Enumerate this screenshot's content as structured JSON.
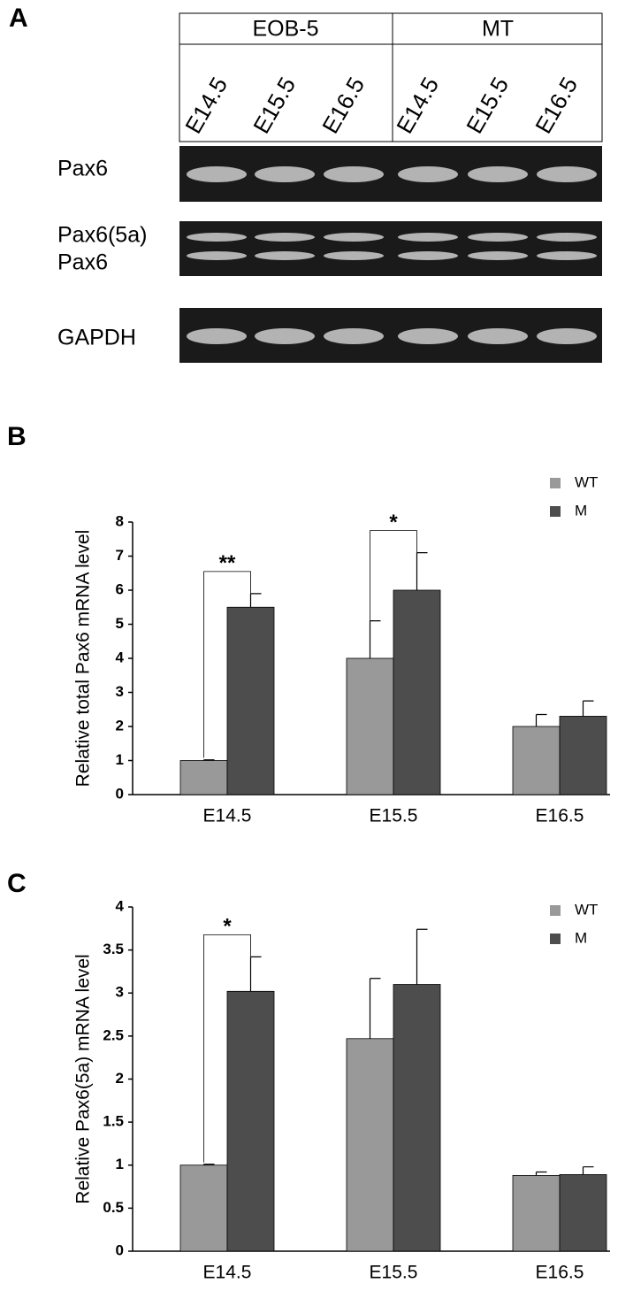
{
  "panel_labels": [
    "A",
    "B",
    "C"
  ],
  "gel": {
    "groups": [
      "EOB-5",
      "MT"
    ],
    "lanes": [
      "E14.5",
      "E15.5",
      "E16.5",
      "E14.5",
      "E15.5",
      "E16.5"
    ],
    "rows": [
      "Pax6",
      "Pax6(5a)",
      "Pax6",
      "GAPDH"
    ]
  },
  "chart_data": [
    {
      "type": "bar",
      "ylabel": "Relative total Pax6 mRNA level",
      "categories": [
        "E14.5",
        "E15.5",
        "E16.5"
      ],
      "series": [
        {
          "name": "WT",
          "color": "#999999",
          "values": [
            1.0,
            4.0,
            2.0
          ],
          "errors": [
            0.02,
            1.1,
            0.35
          ]
        },
        {
          "name": "M",
          "color": "#4d4d4d",
          "values": [
            5.5,
            6.0,
            2.3
          ],
          "errors": [
            0.4,
            1.1,
            0.45
          ]
        }
      ],
      "ylim": [
        0,
        8
      ],
      "yticks": [
        0,
        1,
        2,
        3,
        4,
        5,
        6,
        7,
        8
      ],
      "significance": [
        {
          "category": "E14.5",
          "label": "**"
        },
        {
          "category": "E15.5",
          "label": "*"
        }
      ]
    },
    {
      "type": "bar",
      "ylabel": "Relative Pax6(5a) mRNA level",
      "categories": [
        "E14.5",
        "E15.5",
        "E16.5"
      ],
      "series": [
        {
          "name": "WT",
          "color": "#999999",
          "values": [
            1.0,
            2.47,
            0.88
          ],
          "errors": [
            0.01,
            0.7,
            0.04
          ]
        },
        {
          "name": "M",
          "color": "#4d4d4d",
          "values": [
            3.02,
            3.1,
            0.89
          ],
          "errors": [
            0.4,
            0.64,
            0.09
          ]
        }
      ],
      "ylim": [
        0,
        4
      ],
      "yticks": [
        0,
        0.5,
        1,
        1.5,
        2,
        2.5,
        3,
        3.5,
        4
      ],
      "significance": [
        {
          "category": "E14.5",
          "label": "*"
        }
      ]
    }
  ]
}
